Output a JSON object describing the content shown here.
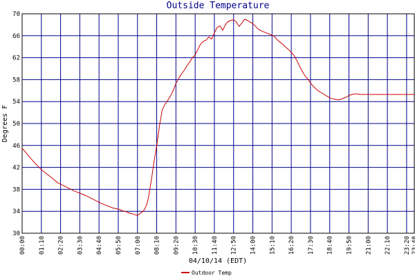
{
  "chart_data": {
    "type": "line",
    "title": "Outside Temperature",
    "xlabel": "04/10/14 (EDT)",
    "ylabel": "Degrees F",
    "ylim": [
      30,
      70
    ],
    "yticks": [
      "30",
      "34",
      "38",
      "42",
      "46",
      "50",
      "54",
      "58",
      "62",
      "66",
      "70"
    ],
    "xticks": [
      "00:00",
      "01:10",
      "02:20",
      "03:30",
      "04:40",
      "05:50",
      "07:00",
      "08:10",
      "09:20",
      "10:30",
      "11:40",
      "12:50",
      "14:00",
      "15:10",
      "16:20",
      "17:30",
      "18:40",
      "19:50",
      "21:00",
      "22:10",
      "23:20",
      "23:48"
    ],
    "grid": true,
    "legend_position": "bottom",
    "colors": {
      "line": "#cc0000",
      "grid": "#00008b",
      "axes": "#000000"
    },
    "series": [
      {
        "name": "Outdoor Temp",
        "x_minutes": [
          0,
          15,
          30,
          50,
          70,
          90,
          110,
          130,
          150,
          170,
          190,
          210,
          230,
          250,
          270,
          290,
          310,
          330,
          350,
          365,
          380,
          395,
          405,
          415,
          420,
          425,
          430,
          435,
          440,
          445,
          450,
          455,
          460,
          470,
          480,
          490,
          500,
          510,
          520,
          530,
          540,
          550,
          560,
          570,
          580,
          590,
          600,
          610,
          620,
          630,
          640,
          650,
          660,
          670,
          680,
          690,
          700,
          710,
          720,
          730,
          740,
          750,
          760,
          770,
          780,
          790,
          800,
          810,
          820,
          830,
          840,
          850,
          860,
          870,
          880,
          890,
          900,
          910,
          920,
          930,
          940,
          950,
          960,
          970,
          980,
          990,
          1000,
          1010,
          1020,
          1030,
          1040,
          1050,
          1060,
          1070,
          1080,
          1090,
          1100,
          1110,
          1120,
          1130,
          1140,
          1150,
          1160,
          1170,
          1180,
          1190,
          1200,
          1210,
          1220,
          1230,
          1240,
          1250,
          1260,
          1270,
          1280,
          1290,
          1300,
          1310,
          1320,
          1330,
          1340,
          1350,
          1360,
          1370,
          1380,
          1390,
          1400,
          1410,
          1420,
          1428
        ],
        "values": [
          45.5,
          44.6,
          43.7,
          42.6,
          41.6,
          40.8,
          40.0,
          39.2,
          38.7,
          38.2,
          37.7,
          37.3,
          36.9,
          36.4,
          35.9,
          35.4,
          35.0,
          34.6,
          34.4,
          34.1,
          33.9,
          33.6,
          33.5,
          33.3,
          33.3,
          33.4,
          33.6,
          33.8,
          34.0,
          34.3,
          34.8,
          35.5,
          36.5,
          39.5,
          43.0,
          46.0,
          49.5,
          52.5,
          53.5,
          54.2,
          55.0,
          56.0,
          57.3,
          58.2,
          59.0,
          59.7,
          60.5,
          61.2,
          62.0,
          62.5,
          63.5,
          64.5,
          65.0,
          65.2,
          65.8,
          65.4,
          66.5,
          67.5,
          67.8,
          67.0,
          68.0,
          68.6,
          68.8,
          68.9,
          68.5,
          67.7,
          68.3,
          69.0,
          68.8,
          68.5,
          68.2,
          67.7,
          67.2,
          66.9,
          66.7,
          66.5,
          66.3,
          66.1,
          65.8,
          65.2,
          64.8,
          64.4,
          63.9,
          63.5,
          63.0,
          62.4,
          61.5,
          60.5,
          59.5,
          58.7,
          58.1,
          57.4,
          56.8,
          56.3,
          55.9,
          55.6,
          55.3,
          55.0,
          54.7,
          54.5,
          54.4,
          54.3,
          54.4,
          54.6,
          54.8,
          55.1,
          55.3,
          55.4,
          55.4,
          55.3,
          55.3,
          55.3,
          55.3,
          55.3,
          55.3,
          55.3,
          55.3,
          55.3,
          55.3,
          55.3,
          55.3,
          55.3,
          55.3,
          55.3,
          55.3,
          55.3,
          55.3,
          55.3,
          55.3,
          55.3
        ]
      }
    ]
  }
}
